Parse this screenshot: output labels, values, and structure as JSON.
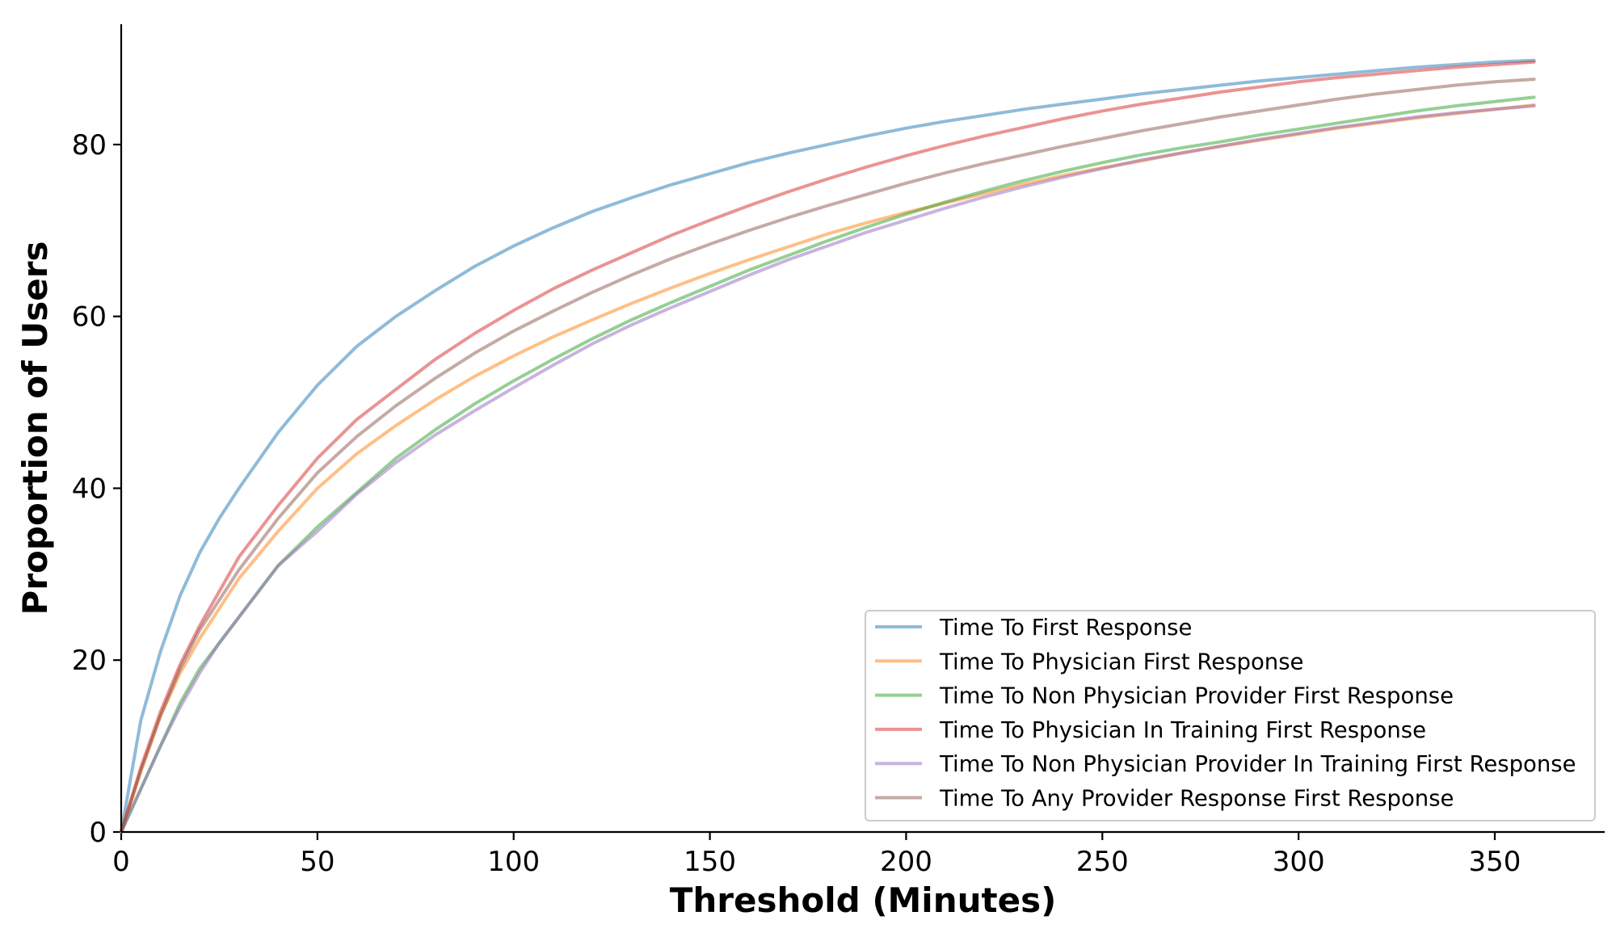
{
  "chart_data": {
    "type": "line",
    "title": "",
    "xlabel": "Threshold (Minutes)",
    "ylabel": "Proportion of Users",
    "xlim": [
      0,
      378
    ],
    "ylim": [
      0,
      94
    ],
    "xticks": [
      0,
      50,
      100,
      150,
      200,
      250,
      300,
      350
    ],
    "yticks": [
      0,
      20,
      40,
      60,
      80
    ],
    "grid": false,
    "legend_position": "lower-right",
    "x": [
      0,
      5,
      10,
      15,
      20,
      25,
      30,
      40,
      50,
      60,
      70,
      80,
      90,
      100,
      110,
      120,
      130,
      140,
      150,
      160,
      170,
      180,
      190,
      200,
      210,
      220,
      230,
      240,
      250,
      260,
      270,
      280,
      290,
      300,
      310,
      320,
      330,
      340,
      350,
      360
    ],
    "series": [
      {
        "name": "Time To First Response",
        "color": "#1f77b4",
        "values": [
          0,
          13,
          21,
          27.5,
          32.5,
          36.5,
          40,
          46.5,
          52,
          56.5,
          60,
          63,
          65.8,
          68.2,
          70.3,
          72.2,
          73.8,
          75.3,
          76.6,
          77.9,
          79,
          80,
          81,
          81.9,
          82.7,
          83.4,
          84.1,
          84.7,
          85.3,
          85.9,
          86.4,
          86.9,
          87.4,
          87.8,
          88.2,
          88.6,
          89,
          89.3,
          89.6,
          89.8
        ]
      },
      {
        "name": "Time To Physician First Response",
        "color": "#ff7f0e",
        "values": [
          0,
          7,
          13.5,
          18.5,
          22.5,
          26,
          29.5,
          35,
          40,
          44,
          47.3,
          50.3,
          53,
          55.4,
          57.6,
          59.6,
          61.5,
          63.3,
          65,
          66.6,
          68.1,
          69.6,
          70.9,
          72.1,
          73.2,
          74.3,
          75.4,
          76.4,
          77.3,
          78.1,
          79,
          79.8,
          80.5,
          81.2,
          81.9,
          82.5,
          83.1,
          83.6,
          84.1,
          84.6
        ]
      },
      {
        "name": "Time To Non Physician Provider First Response",
        "color": "#2ca02c",
        "values": [
          0,
          5,
          10,
          15,
          19,
          22,
          25,
          31,
          35.5,
          39.5,
          43.5,
          46.8,
          49.8,
          52.5,
          55,
          57.4,
          59.6,
          61.6,
          63.5,
          65.4,
          67.1,
          68.8,
          70.4,
          71.9,
          73.3,
          74.6,
          75.8,
          76.9,
          77.9,
          78.8,
          79.6,
          80.3,
          81.1,
          81.8,
          82.5,
          83.2,
          83.9,
          84.5,
          85,
          85.5
        ]
      },
      {
        "name": "Time To Physician In Training First Response",
        "color": "#d62728",
        "values": [
          0,
          7.5,
          14,
          19.5,
          24,
          28,
          32,
          38,
          43.5,
          48,
          51.5,
          55,
          58,
          60.7,
          63.2,
          65.4,
          67.4,
          69.4,
          71.2,
          72.9,
          74.5,
          76,
          77.4,
          78.7,
          79.9,
          81,
          82,
          83,
          83.9,
          84.7,
          85.4,
          86.1,
          86.7,
          87.3,
          87.8,
          88.2,
          88.6,
          89,
          89.3,
          89.6
        ]
      },
      {
        "name": "Time To Non Physician Provider In Training First Response",
        "color": "#9467bd",
        "values": [
          0,
          5,
          10,
          14.5,
          18.5,
          22,
          25,
          31,
          35,
          39.3,
          43,
          46.2,
          49,
          51.7,
          54.3,
          56.8,
          59,
          61,
          62.9,
          64.8,
          66.6,
          68.2,
          69.8,
          71.2,
          72.6,
          73.9,
          75.1,
          76.2,
          77.2,
          78.2,
          79,
          79.8,
          80.6,
          81.3,
          82,
          82.6,
          83.2,
          83.7,
          84.1,
          84.5
        ]
      },
      {
        "name": "Time To Any Provider Response First Response",
        "color": "#8c564b",
        "values": [
          0,
          7.2,
          13.5,
          19,
          23.5,
          27,
          30.5,
          36.5,
          41.8,
          46,
          49.6,
          52.8,
          55.7,
          58.3,
          60.6,
          62.8,
          64.8,
          66.7,
          68.4,
          70,
          71.5,
          72.9,
          74.2,
          75.5,
          76.7,
          77.8,
          78.8,
          79.8,
          80.7,
          81.6,
          82.4,
          83.2,
          83.9,
          84.6,
          85.3,
          85.9,
          86.4,
          86.9,
          87.3,
          87.6
        ]
      }
    ]
  }
}
